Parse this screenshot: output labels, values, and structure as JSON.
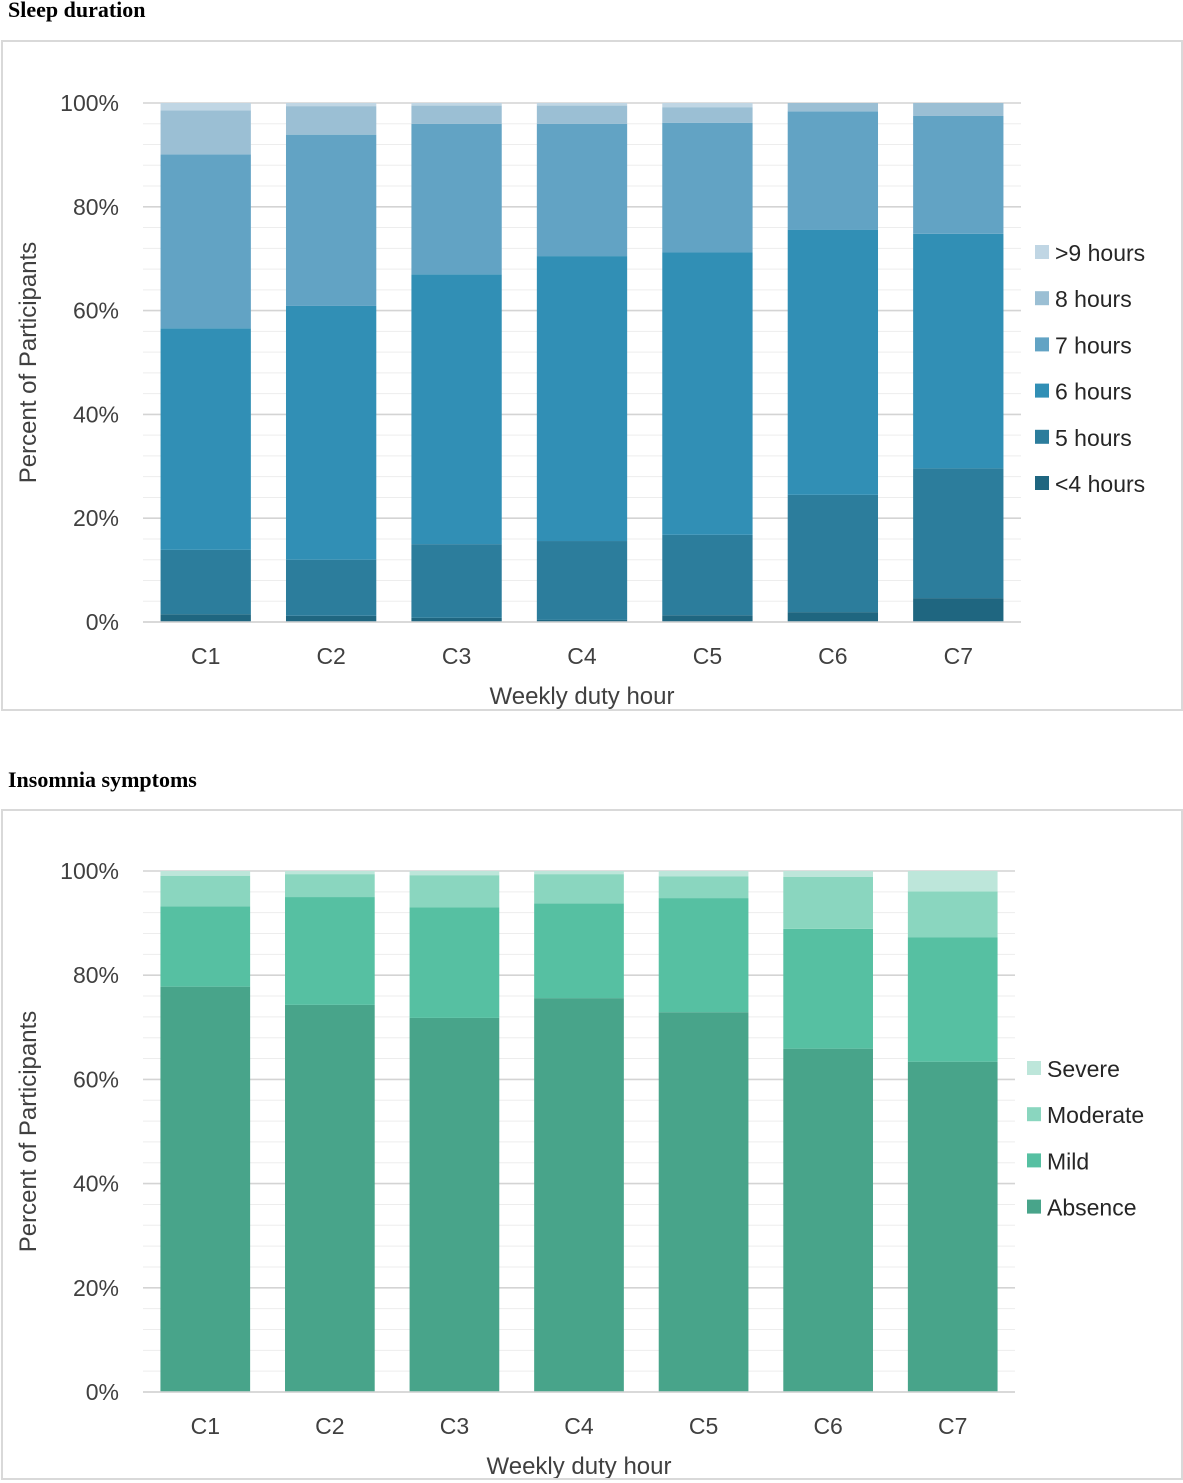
{
  "titles": {
    "sleep": "Sleep duration",
    "insomnia": "Insomnia symptoms"
  },
  "chart_data": [
    {
      "type": "bar",
      "stacked": true,
      "title": "Sleep duration",
      "xlabel": "Weekly duty hour",
      "ylabel": "Percent of Participants",
      "ylim": [
        0,
        100
      ],
      "yticks": [
        "0%",
        "20%",
        "40%",
        "60%",
        "80%",
        "100%"
      ],
      "grid": true,
      "legend_position": "right",
      "categories": [
        "C1",
        "C2",
        "C3",
        "C4",
        "C5",
        "C6",
        "C7"
      ],
      "series": [
        {
          "name": "<4 hours",
          "color": "#1f6680",
          "values": [
            1.5,
            1.2,
            0.8,
            0.4,
            1.3,
            1.9,
            4.6
          ]
        },
        {
          "name": "5 hours",
          "color": "#2c7d9c",
          "values": [
            12.4,
            10.8,
            14.2,
            15.2,
            15.5,
            22.6,
            25.0
          ]
        },
        {
          "name": "6 hours",
          "color": "#318fb5",
          "values": [
            42.7,
            48.9,
            52.0,
            54.9,
            54.4,
            51.1,
            45.2
          ]
        },
        {
          "name": "7 hours",
          "color": "#62a3c4",
          "values": [
            33.5,
            33.0,
            29.0,
            25.5,
            25.0,
            22.8,
            22.7
          ]
        },
        {
          "name": "8 hours",
          "color": "#9bbfd4",
          "values": [
            8.5,
            5.5,
            3.5,
            3.5,
            3.0,
            1.6,
            2.5
          ]
        },
        {
          "name": ">9 hours",
          "color": "#c0d6e4",
          "values": [
            1.4,
            0.6,
            0.5,
            0.5,
            0.8,
            0.0,
            0.0
          ]
        }
      ]
    },
    {
      "type": "bar",
      "stacked": true,
      "title": "Insomnia symptoms",
      "xlabel": "Weekly duty hour",
      "ylabel": "Percent of Participants",
      "ylim": [
        0,
        100
      ],
      "yticks": [
        "0%",
        "20%",
        "40%",
        "60%",
        "80%",
        "100%"
      ],
      "grid": true,
      "legend_position": "right",
      "categories": [
        "C1",
        "C2",
        "C3",
        "C4",
        "C5",
        "C6",
        "C7"
      ],
      "series": [
        {
          "name": "Absence",
          "color": "#48a48a",
          "values": [
            77.8,
            74.3,
            71.8,
            75.6,
            72.9,
            65.9,
            63.4
          ]
        },
        {
          "name": "Mild",
          "color": "#56c0a2",
          "values": [
            15.4,
            20.7,
            21.2,
            18.2,
            21.9,
            23.0,
            23.9
          ]
        },
        {
          "name": "Moderate",
          "color": "#8ad6bf",
          "values": [
            5.9,
            4.4,
            6.2,
            5.6,
            4.2,
            10.0,
            8.8
          ]
        },
        {
          "name": "Severe",
          "color": "#bde6da",
          "values": [
            0.9,
            0.6,
            0.8,
            0.6,
            1.0,
            1.1,
            3.9
          ]
        }
      ]
    }
  ]
}
